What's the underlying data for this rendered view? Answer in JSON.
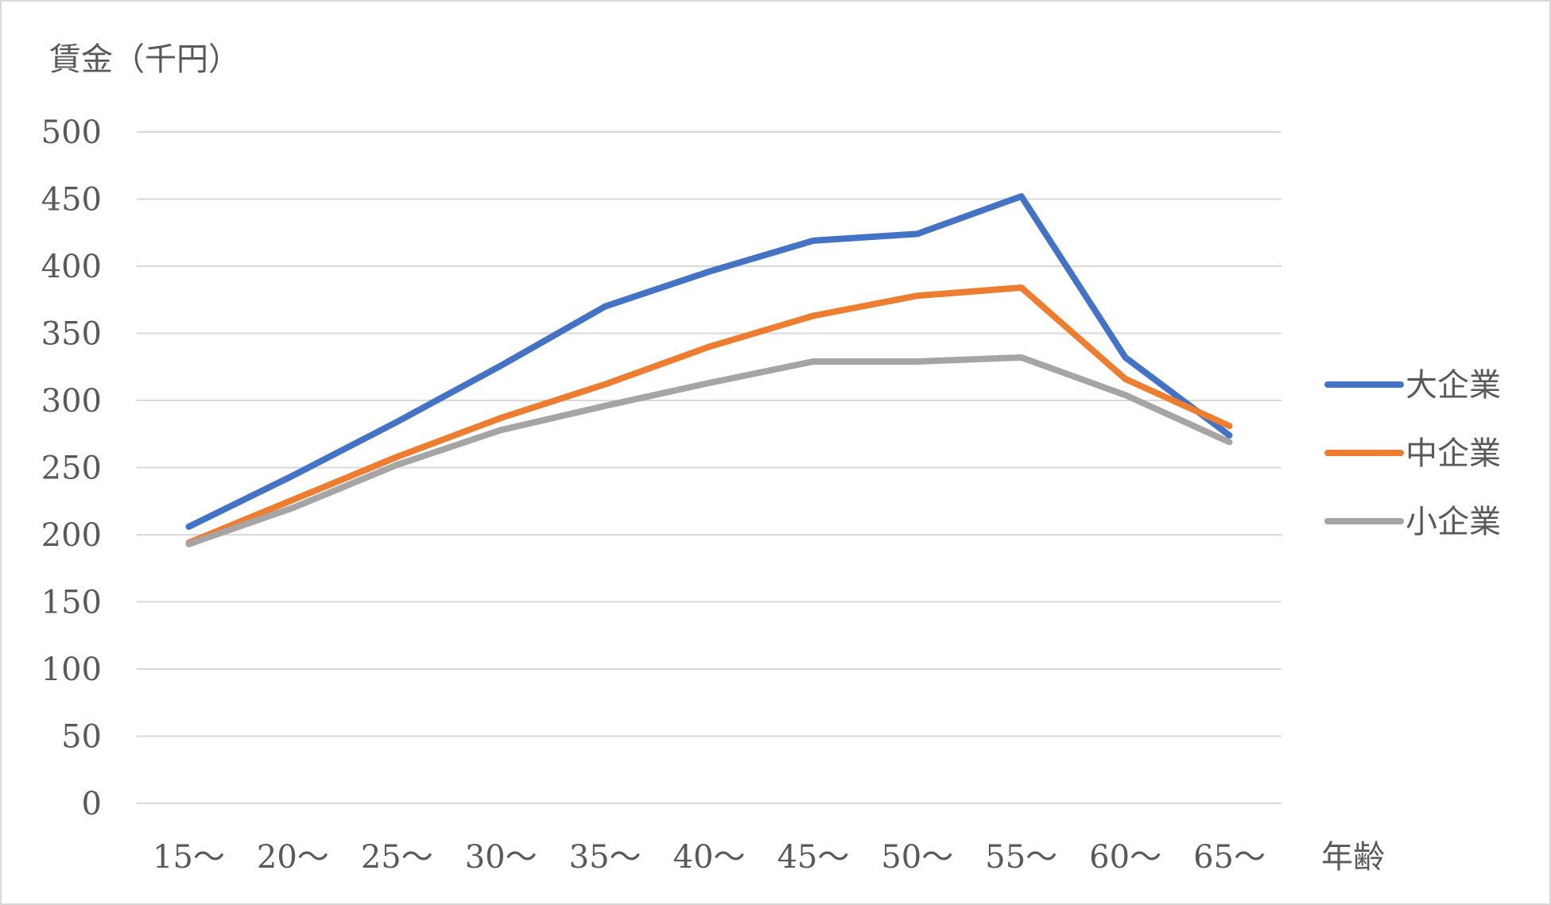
{
  "chart_data": {
    "type": "line",
    "title": "",
    "ylabel": "賃金（千円）",
    "xlabel": "年齢",
    "ylim": [
      0,
      500
    ],
    "ytick_step": 50,
    "grid": true,
    "legend_position": "right",
    "categories": [
      "15～",
      "20～",
      "25～",
      "30～",
      "35～",
      "40～",
      "45～",
      "50～",
      "55～",
      "60～",
      "65～"
    ],
    "series": [
      {
        "name": "大企業",
        "color": "#4472c4",
        "values": [
          206,
          244,
          284,
          326,
          370,
          396,
          419,
          424,
          452,
          332,
          274
        ]
      },
      {
        "name": "中企業",
        "color": "#ed7d31",
        "values": [
          194,
          226,
          258,
          287,
          312,
          340,
          363,
          378,
          384,
          316,
          281
        ]
      },
      {
        "name": "小企業",
        "color": "#a5a5a5",
        "values": [
          193,
          220,
          252,
          278,
          296,
          313,
          329,
          329,
          332,
          304,
          269
        ]
      }
    ]
  }
}
